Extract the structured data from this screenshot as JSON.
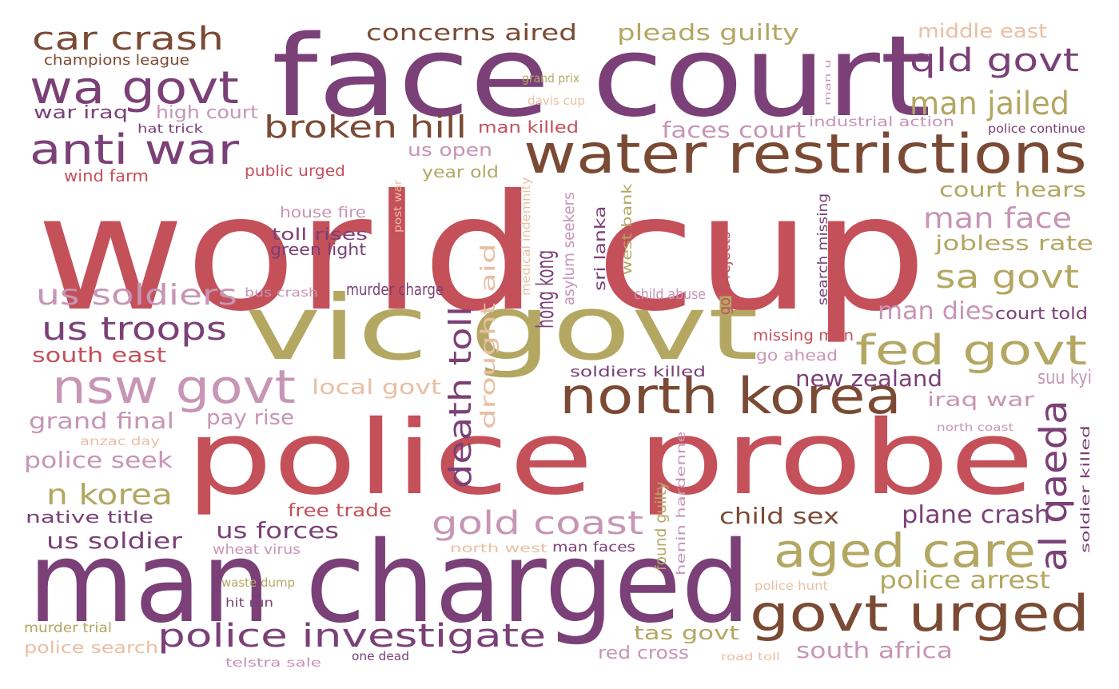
{
  "palette": {
    "red": "#c4505a",
    "purple": "#7a4077",
    "olive": "#b3a762",
    "brown": "#7b4a34",
    "pink": "#c795b5",
    "peach": "#e9bfa3"
  },
  "words": [
    {
      "text": "world cup",
      "color": "red"
    },
    {
      "text": "face court",
      "color": "purple"
    },
    {
      "text": "police probe",
      "color": "red"
    },
    {
      "text": "man charged",
      "color": "purple"
    },
    {
      "text": "vic govt",
      "color": "olive"
    },
    {
      "text": "water restrictions",
      "color": "brown"
    },
    {
      "text": "north korea",
      "color": "brown"
    },
    {
      "text": "nsw govt",
      "color": "pink"
    },
    {
      "text": "aged care",
      "color": "olive"
    },
    {
      "text": "govt urged",
      "color": "brown"
    },
    {
      "text": "fed govt",
      "color": "olive"
    },
    {
      "text": "wa govt",
      "color": "purple"
    },
    {
      "text": "anti war",
      "color": "purple"
    },
    {
      "text": "car crash",
      "color": "brown"
    },
    {
      "text": "broken hill",
      "color": "brown"
    },
    {
      "text": "police investigate",
      "color": "purple"
    },
    {
      "text": "qld govt",
      "color": "purple"
    },
    {
      "text": "man jailed",
      "color": "olive"
    },
    {
      "text": "sa govt",
      "color": "olive"
    },
    {
      "text": "man face",
      "color": "pink"
    },
    {
      "text": "us troops",
      "color": "purple"
    },
    {
      "text": "us soldiers",
      "color": "pink"
    },
    {
      "text": "gold coast",
      "color": "pink"
    },
    {
      "text": "death toll",
      "color": "purple"
    },
    {
      "text": "al qaeda",
      "color": "purple"
    },
    {
      "text": "concerns aired",
      "color": "brown"
    },
    {
      "text": "pleads guilty",
      "color": "olive"
    },
    {
      "text": "middle east",
      "color": "peach"
    },
    {
      "text": "champions league",
      "color": "brown"
    },
    {
      "text": "faces court",
      "color": "pink"
    },
    {
      "text": "court hears",
      "color": "olive"
    },
    {
      "text": "jobless rate",
      "color": "olive"
    },
    {
      "text": "man dies",
      "color": "pink"
    },
    {
      "text": "police arrest",
      "color": "olive"
    },
    {
      "text": "south east",
      "color": "red"
    },
    {
      "text": "grand final",
      "color": "pink"
    },
    {
      "text": "police seek",
      "color": "pink"
    },
    {
      "text": "n korea",
      "color": "olive"
    },
    {
      "text": "hong kong",
      "color": "purple"
    },
    {
      "text": "drought aid",
      "color": "peach"
    },
    {
      "text": "local govt",
      "color": "peach"
    },
    {
      "text": "pay rise",
      "color": "pink"
    },
    {
      "text": "new zealand",
      "color": "purple"
    },
    {
      "text": "suu kyi",
      "color": "pink"
    },
    {
      "text": "iraq war",
      "color": "pink"
    },
    {
      "text": "child sex",
      "color": "brown"
    },
    {
      "text": "plane crash",
      "color": "purple"
    },
    {
      "text": "us forces",
      "color": "purple"
    },
    {
      "text": "us soldier",
      "color": "purple"
    },
    {
      "text": "native title",
      "color": "purple"
    },
    {
      "text": "free trade",
      "color": "red"
    },
    {
      "text": "tas govt",
      "color": "olive"
    },
    {
      "text": "south africa",
      "color": "pink"
    },
    {
      "text": "red cross",
      "color": "pink"
    },
    {
      "text": "us open",
      "color": "pink"
    },
    {
      "text": "year old",
      "color": "olive"
    },
    {
      "text": "man killed",
      "color": "red"
    },
    {
      "text": "high court",
      "color": "pink"
    },
    {
      "text": "war iraq",
      "color": "purple"
    },
    {
      "text": "hat trick",
      "color": "purple"
    },
    {
      "text": "wind farm",
      "color": "red"
    },
    {
      "text": "public urged",
      "color": "red"
    },
    {
      "text": "house fire",
      "color": "pink"
    },
    {
      "text": "toll rises",
      "color": "purple"
    },
    {
      "text": "green light",
      "color": "purple"
    },
    {
      "text": "bus crash",
      "color": "pink"
    },
    {
      "text": "murder charge",
      "color": "purple"
    },
    {
      "text": "missing man",
      "color": "red"
    },
    {
      "text": "go ahead",
      "color": "pink"
    },
    {
      "text": "soldiers killed",
      "color": "purple"
    },
    {
      "text": "court told",
      "color": "purple"
    },
    {
      "text": "child abuse",
      "color": "pink"
    },
    {
      "text": "grand prix",
      "color": "olive"
    },
    {
      "text": "davis cup",
      "color": "peach"
    },
    {
      "text": "industrial action",
      "color": "pink"
    },
    {
      "text": "police continue",
      "color": "purple"
    },
    {
      "text": "man u",
      "color": "pink"
    },
    {
      "text": "post war",
      "color": "peach"
    },
    {
      "text": "medical indemnity",
      "color": "peach"
    },
    {
      "text": "asylum seekers",
      "color": "pink"
    },
    {
      "text": "sri lanka",
      "color": "purple"
    },
    {
      "text": "west bank",
      "color": "olive"
    },
    {
      "text": "govt rejects",
      "color": "red"
    },
    {
      "text": "search missing",
      "color": "purple"
    },
    {
      "text": "found guilty",
      "color": "olive"
    },
    {
      "text": "henin hardenne",
      "color": "pink"
    },
    {
      "text": "soldier killed",
      "color": "purple"
    },
    {
      "text": "anzac day",
      "color": "peach"
    },
    {
      "text": "north coast",
      "color": "pink"
    },
    {
      "text": "wheat virus",
      "color": "pink"
    },
    {
      "text": "north west",
      "color": "peach"
    },
    {
      "text": "man faces",
      "color": "purple"
    },
    {
      "text": "waste dump",
      "color": "olive"
    },
    {
      "text": "hit run",
      "color": "purple"
    },
    {
      "text": "police hunt",
      "color": "peach"
    },
    {
      "text": "murder trial",
      "color": "olive"
    },
    {
      "text": "police search",
      "color": "peach"
    },
    {
      "text": "telstra sale",
      "color": "pink"
    },
    {
      "text": "one dead",
      "color": "purple"
    },
    {
      "text": "road toll",
      "color": "peach"
    }
  ]
}
